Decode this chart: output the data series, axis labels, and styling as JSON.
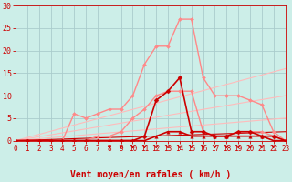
{
  "background_color": "#cceee8",
  "grid_color": "#aacccc",
  "xlabel": "Vent moyen/en rafales ( km/h )",
  "xlim": [
    0,
    23
  ],
  "ylim": [
    0,
    30
  ],
  "yticks": [
    0,
    5,
    10,
    15,
    20,
    25,
    30
  ],
  "xticks": [
    0,
    1,
    2,
    3,
    4,
    5,
    6,
    7,
    8,
    9,
    10,
    11,
    12,
    13,
    14,
    15,
    16,
    17,
    18,
    19,
    20,
    21,
    22,
    23
  ],
  "series": [
    {
      "name": "pink_main",
      "x": [
        0,
        1,
        2,
        3,
        4,
        5,
        6,
        7,
        8,
        9,
        10,
        11,
        12,
        13,
        14,
        15,
        16,
        17,
        18,
        19,
        20,
        21,
        22,
        23
      ],
      "y": [
        0,
        0,
        0,
        0,
        0,
        6,
        5,
        6,
        7,
        7,
        10,
        17,
        21,
        21,
        27,
        27,
        14,
        10,
        10,
        10,
        9,
        8,
        2,
        0
      ],
      "color": "#ff8888",
      "linewidth": 1.0,
      "marker": "D",
      "markersize": 2.0,
      "zorder": 3
    },
    {
      "name": "pink_lower",
      "x": [
        0,
        1,
        2,
        3,
        4,
        5,
        6,
        7,
        8,
        9,
        10,
        11,
        12,
        13,
        14,
        15,
        16,
        17,
        18,
        19,
        20,
        21,
        22,
        23
      ],
      "y": [
        0,
        0,
        0,
        0,
        0,
        0,
        0,
        1,
        1,
        2,
        5,
        7,
        10,
        11,
        11,
        11,
        2,
        1,
        1,
        2,
        2,
        2,
        1,
        0
      ],
      "color": "#ff8888",
      "linewidth": 1.0,
      "marker": "D",
      "markersize": 2.0,
      "zorder": 3
    },
    {
      "name": "diag_high",
      "x": [
        0,
        23
      ],
      "y": [
        0,
        16
      ],
      "color": "#ffbbbb",
      "linewidth": 0.8,
      "marker": null,
      "markersize": 0,
      "zorder": 2
    },
    {
      "name": "diag_mid",
      "x": [
        0,
        23
      ],
      "y": [
        0,
        10
      ],
      "color": "#ffbbbb",
      "linewidth": 0.8,
      "marker": null,
      "markersize": 0,
      "zorder": 2
    },
    {
      "name": "diag_low",
      "x": [
        0,
        23
      ],
      "y": [
        0,
        5
      ],
      "color": "#ffbbbb",
      "linewidth": 0.8,
      "marker": null,
      "markersize": 0,
      "zorder": 2
    },
    {
      "name": "dark_red_main",
      "x": [
        0,
        1,
        2,
        3,
        4,
        5,
        6,
        7,
        8,
        9,
        10,
        11,
        12,
        13,
        14,
        15,
        16,
        17,
        18,
        19,
        20,
        21,
        22,
        23
      ],
      "y": [
        0,
        0,
        0,
        0,
        0,
        0,
        0,
        0,
        0,
        0,
        0,
        1,
        9,
        11,
        14,
        2,
        2,
        1,
        1,
        2,
        2,
        1,
        1,
        0
      ],
      "color": "#cc0000",
      "linewidth": 1.2,
      "marker": "D",
      "markersize": 2.5,
      "zorder": 4
    },
    {
      "name": "dark_red_lower",
      "x": [
        0,
        1,
        2,
        3,
        4,
        5,
        6,
        7,
        8,
        9,
        10,
        11,
        12,
        13,
        14,
        15,
        16,
        17,
        18,
        19,
        20,
        21,
        22,
        23
      ],
      "y": [
        0,
        0,
        0,
        0,
        0,
        0,
        0,
        0,
        0,
        0,
        0,
        0,
        1,
        2,
        2,
        1,
        1,
        1,
        1,
        1,
        1,
        1,
        0,
        0
      ],
      "color": "#cc0000",
      "linewidth": 1.2,
      "marker": "^",
      "markersize": 2.5,
      "zorder": 4
    },
    {
      "name": "dark_diag",
      "x": [
        0,
        23
      ],
      "y": [
        0,
        2
      ],
      "color": "#cc0000",
      "linewidth": 0.8,
      "marker": null,
      "markersize": 0,
      "zorder": 2
    }
  ],
  "wind_arrows_x": [
    8,
    9,
    10,
    11,
    12,
    13,
    14,
    15,
    16,
    17,
    18,
    19,
    20,
    21,
    22
  ],
  "arrow_color": "#cc0000",
  "tick_color": "#cc0000",
  "label_color": "#cc0000",
  "spine_color": "#cc0000",
  "xlabel_fontsize": 7,
  "tick_fontsize": 5.5,
  "figsize": [
    3.2,
    2.0
  ],
  "dpi": 100
}
